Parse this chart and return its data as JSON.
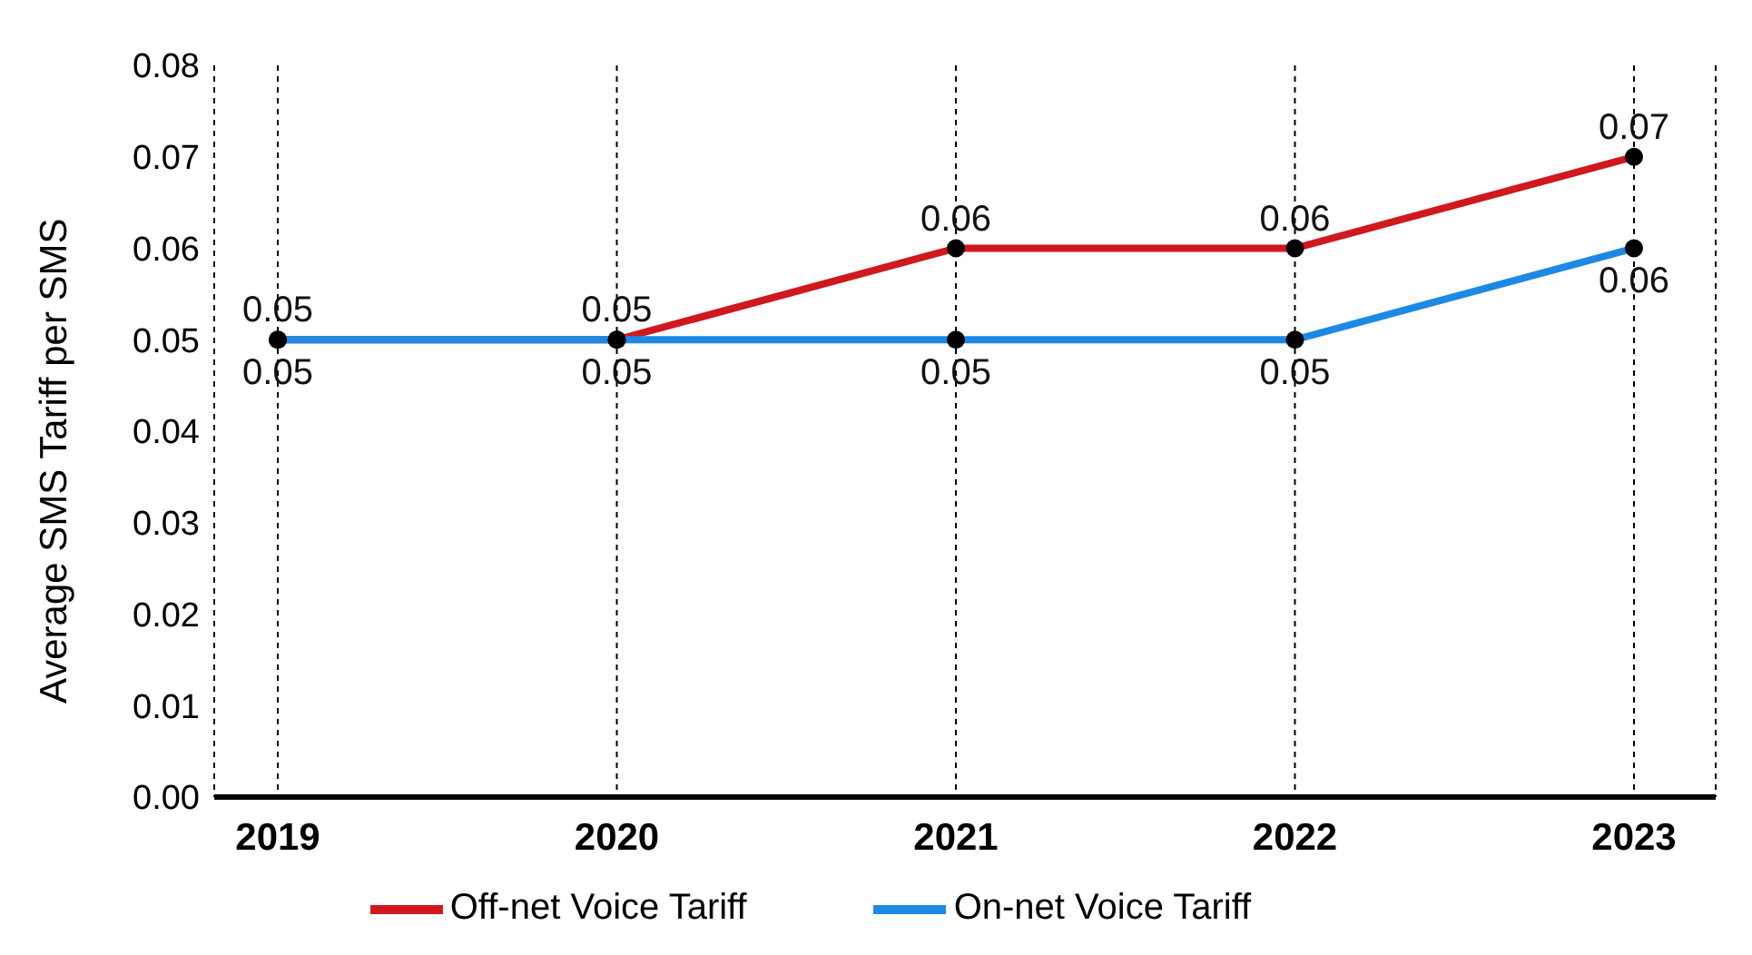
{
  "chart_data": {
    "type": "line",
    "ylabel": "Average SMS Tariff per SMS",
    "categories": [
      "2019",
      "2020",
      "2021",
      "2022",
      "2023"
    ],
    "series": [
      {
        "name": "Off-net Voice Tariff",
        "color": "#d0181f",
        "values": [
          0.05,
          0.05,
          0.06,
          0.06,
          0.07
        ]
      },
      {
        "name": "On-net Voice Tariff",
        "color": "#1e88e5",
        "values": [
          0.05,
          0.05,
          0.05,
          0.05,
          0.06
        ]
      }
    ],
    "ylim": [
      0,
      0.08
    ],
    "yticks": [
      {
        "value": 0,
        "label": "0.00"
      },
      {
        "value": 0.01,
        "label": "0.01"
      },
      {
        "value": 0.02,
        "label": "0.02"
      },
      {
        "value": 0.03,
        "label": "0.03"
      },
      {
        "value": 0.04,
        "label": "0.04"
      },
      {
        "value": 0.05,
        "label": "0.05"
      },
      {
        "value": 0.06,
        "label": "0.06"
      },
      {
        "value": 0.07,
        "label": "0.07"
      },
      {
        "value": 0.08,
        "label": "0.08"
      }
    ],
    "grid": "x",
    "legend": "bottom",
    "marker": "circle",
    "line_style": "solid",
    "data_labels": true
  }
}
